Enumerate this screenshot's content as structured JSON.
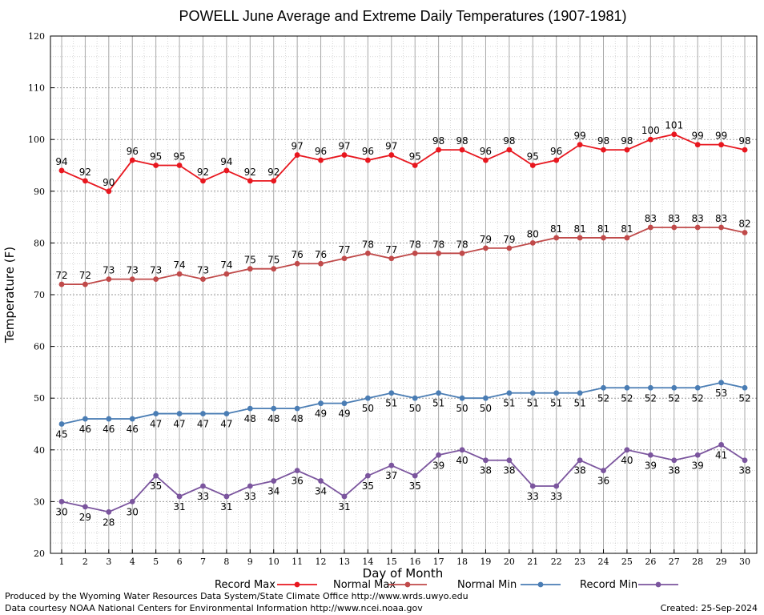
{
  "chart_data": {
    "type": "line",
    "title": "POWELL June Average and Extreme Daily Temperatures (1907-1981)",
    "xlabel": "Day of Month",
    "ylabel": "Temperature (F)",
    "ylim": [
      20,
      120
    ],
    "yticks": [
      20,
      30,
      40,
      50,
      60,
      70,
      80,
      90,
      100,
      110,
      120
    ],
    "x": [
      1,
      2,
      3,
      4,
      5,
      6,
      7,
      8,
      9,
      10,
      11,
      12,
      13,
      14,
      15,
      16,
      17,
      18,
      19,
      20,
      21,
      22,
      23,
      24,
      25,
      26,
      27,
      28,
      29,
      30
    ],
    "grid": true,
    "legend_placement": "bottom",
    "series": [
      {
        "name": "Record Max",
        "color": "#e8171f",
        "values": [
          94,
          92,
          90,
          96,
          95,
          95,
          92,
          94,
          92,
          92,
          97,
          96,
          97,
          96,
          97,
          95,
          98,
          98,
          96,
          98,
          95,
          96,
          99,
          98,
          98,
          100,
          101,
          99,
          99,
          98
        ]
      },
      {
        "name": "Normal Max",
        "color": "#c04a4a",
        "values": [
          72,
          72,
          73,
          73,
          73,
          74,
          73,
          74,
          75,
          75,
          76,
          76,
          77,
          78,
          77,
          78,
          78,
          78,
          79,
          79,
          80,
          81,
          81,
          81,
          81,
          83,
          83,
          83,
          83,
          82
        ]
      },
      {
        "name": "Normal Min",
        "color": "#4a7db4",
        "values": [
          45,
          46,
          46,
          46,
          47,
          47,
          47,
          47,
          48,
          48,
          48,
          49,
          49,
          50,
          51,
          50,
          51,
          50,
          50,
          51,
          51,
          51,
          51,
          52,
          52,
          52,
          52,
          52,
          53,
          52
        ]
      },
      {
        "name": "Record Min",
        "color": "#7b559e",
        "values": [
          30,
          29,
          28,
          30,
          35,
          31,
          33,
          31,
          33,
          34,
          36,
          34,
          31,
          35,
          37,
          35,
          39,
          40,
          38,
          38,
          33,
          33,
          38,
          36,
          40,
          39,
          38,
          39,
          41,
          38
        ]
      }
    ]
  },
  "footer": {
    "produced_by": "Produced by the Wyoming Water Resources Data System/State Climate Office http://www.wrds.uwyo.edu",
    "data_courtesy": "Data courtesy NOAA National Centers for Environmental Information http://www.ncei.noaa.gov",
    "created": "Created: 25-Sep-2024"
  }
}
